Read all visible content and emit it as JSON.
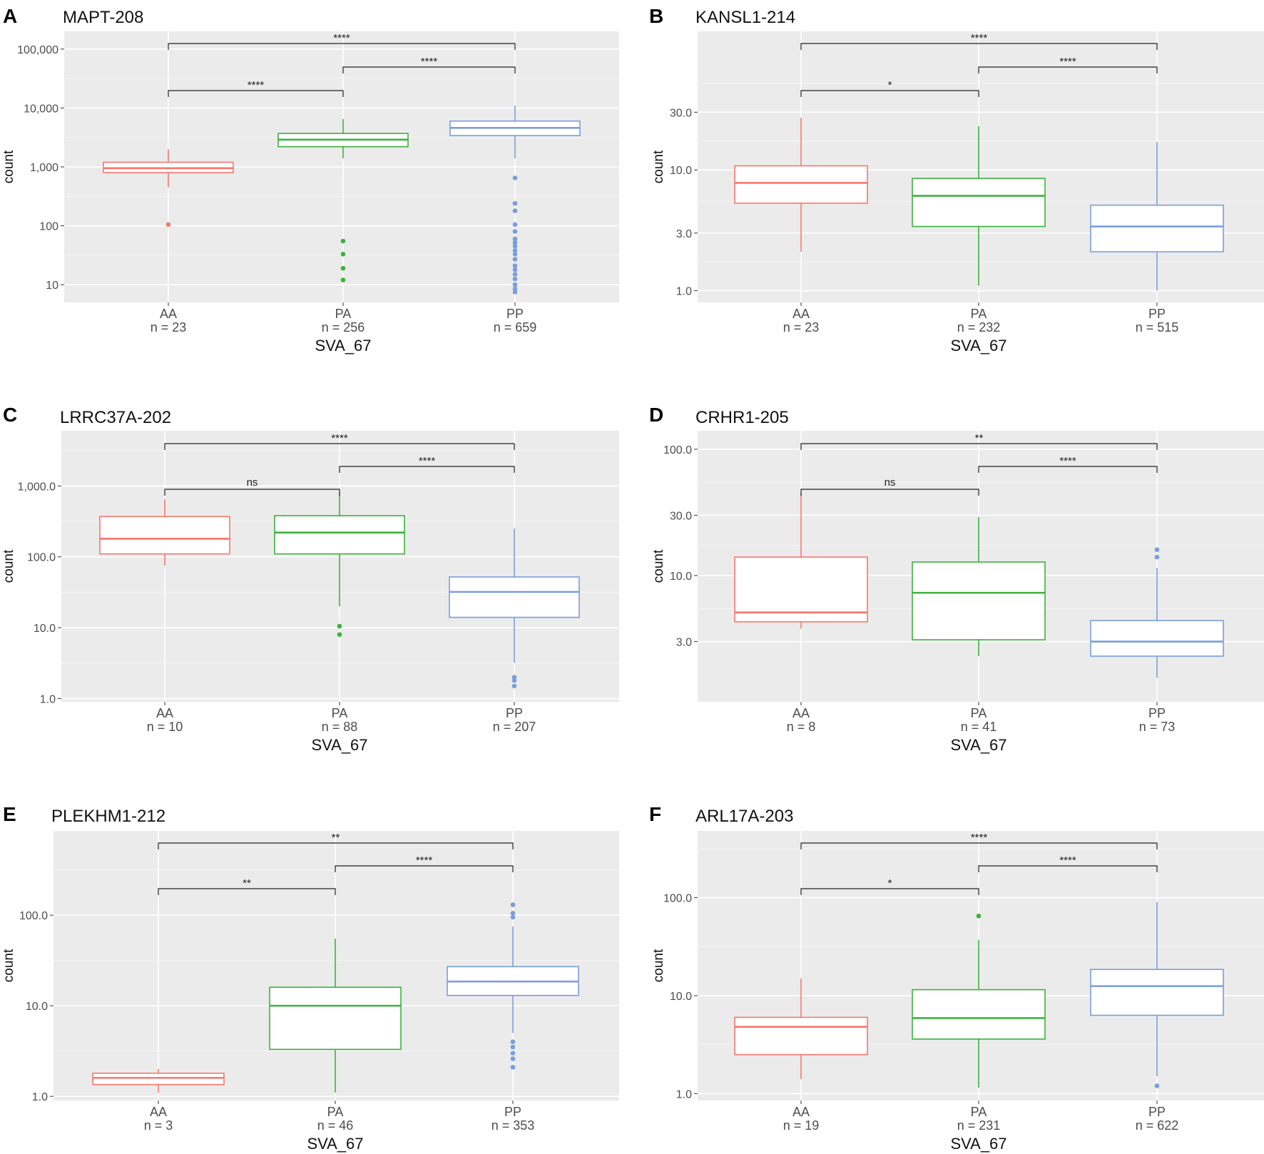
{
  "figure": {
    "x_axis_label": "SVA_67",
    "y_axis_label": "count",
    "colors": {
      "AA": "#F8766D",
      "PA": "#3BB33B",
      "PP": "#7A9EDB",
      "panel_bg": "#EBEBEB",
      "grid": "#FFFFFF"
    }
  },
  "chart_data": [
    {
      "type": "boxplot",
      "panel": "A",
      "title": "MAPT-208",
      "xlabel": "SVA_67",
      "ylabel": "count",
      "yscale": "log10",
      "ylim": [
        5,
        200000
      ],
      "yticks": [
        10,
        100,
        1000,
        10000,
        100000
      ],
      "ytick_labels": [
        "10",
        "100",
        "1,000",
        "10,000",
        "100,000"
      ],
      "categories": [
        "AA",
        "PA",
        "PP"
      ],
      "n_labels": [
        "n = 23",
        "n = 256",
        "n = 659"
      ],
      "boxes": [
        {
          "whisker_low": 450,
          "q1": 800,
          "median": 950,
          "q3": 1200,
          "whisker_high": 2000,
          "outliers": [
            105
          ]
        },
        {
          "whisker_low": 1400,
          "q1": 2200,
          "median": 2900,
          "q3": 3700,
          "whisker_high": 6500,
          "outliers": [
            55,
            33,
            19,
            12
          ]
        },
        {
          "whisker_low": 1400,
          "q1": 3400,
          "median": 4600,
          "q3": 6000,
          "whisker_high": 11000,
          "outliers": [
            650,
            240,
            180,
            105,
            80,
            60,
            52,
            45,
            38,
            33,
            27,
            21,
            18,
            15,
            12.5,
            10,
            8.5,
            7.5
          ]
        }
      ],
      "comparisons": [
        {
          "from": "AA",
          "to": "PA",
          "label": "****"
        },
        {
          "from": "PA",
          "to": "PP",
          "label": "****"
        },
        {
          "from": "AA",
          "to": "PP",
          "label": "****"
        }
      ]
    },
    {
      "type": "boxplot",
      "panel": "B",
      "title": "KANSL1-214",
      "xlabel": "SVA_67",
      "ylabel": "count",
      "yscale": "log10",
      "ylim": [
        0.8,
        140
      ],
      "yticks": [
        1,
        3,
        10,
        30
      ],
      "ytick_labels": [
        "1.0",
        "3.0",
        "10.0",
        "30.0"
      ],
      "categories": [
        "AA",
        "PA",
        "PP"
      ],
      "n_labels": [
        "n = 23",
        "n = 232",
        "n = 515"
      ],
      "boxes": [
        {
          "whisker_low": 2.1,
          "q1": 5.3,
          "median": 7.8,
          "q3": 10.8,
          "whisker_high": 27,
          "outliers": []
        },
        {
          "whisker_low": 1.1,
          "q1": 3.4,
          "median": 6.1,
          "q3": 8.5,
          "whisker_high": 23,
          "outliers": []
        },
        {
          "whisker_low": 1.0,
          "q1": 2.1,
          "median": 3.4,
          "q3": 5.1,
          "whisker_high": 17,
          "outliers": []
        }
      ],
      "comparisons": [
        {
          "from": "AA",
          "to": "PA",
          "label": "*"
        },
        {
          "from": "PA",
          "to": "PP",
          "label": "****"
        },
        {
          "from": "AA",
          "to": "PP",
          "label": "****"
        }
      ]
    },
    {
      "type": "boxplot",
      "panel": "C",
      "title": "LRRC37A-202",
      "xlabel": "SVA_67",
      "ylabel": "count",
      "yscale": "log10",
      "ylim": [
        0.9,
        6000
      ],
      "yticks": [
        1,
        10,
        100,
        1000
      ],
      "ytick_labels": [
        "1.0",
        "10.0",
        "100.0",
        "1,000.0"
      ],
      "categories": [
        "AA",
        "PA",
        "PP"
      ],
      "n_labels": [
        "n = 10",
        "n = 88",
        "n = 207"
      ],
      "boxes": [
        {
          "whisker_low": 75,
          "q1": 110,
          "median": 180,
          "q3": 370,
          "whisker_high": 650,
          "outliers": []
        },
        {
          "whisker_low": 20,
          "q1": 110,
          "median": 220,
          "q3": 380,
          "whisker_high": 800,
          "outliers": [
            10.5,
            8
          ]
        },
        {
          "whisker_low": 3.2,
          "q1": 14,
          "median": 32,
          "q3": 52,
          "whisker_high": 250,
          "outliers": [
            2.0,
            1.8,
            1.5
          ]
        }
      ],
      "comparisons": [
        {
          "from": "AA",
          "to": "PA",
          "label": "ns"
        },
        {
          "from": "PA",
          "to": "PP",
          "label": "****"
        },
        {
          "from": "AA",
          "to": "PP",
          "label": "****"
        }
      ]
    },
    {
      "type": "boxplot",
      "panel": "D",
      "title": "CRHR1-205",
      "xlabel": "SVA_67",
      "ylabel": "count",
      "yscale": "log10",
      "ylim": [
        1.0,
        140
      ],
      "yticks": [
        3,
        10,
        30,
        100
      ],
      "ytick_labels": [
        "3.0",
        "10.0",
        "30.0",
        "100.0"
      ],
      "categories": [
        "AA",
        "PA",
        "PP"
      ],
      "n_labels": [
        "n = 8",
        "n = 41",
        "n = 73"
      ],
      "boxes": [
        {
          "whisker_low": 3.8,
          "q1": 4.3,
          "median": 5.1,
          "q3": 14,
          "whisker_high": 45,
          "outliers": []
        },
        {
          "whisker_low": 2.3,
          "q1": 3.1,
          "median": 7.3,
          "q3": 12.8,
          "whisker_high": 29,
          "outliers": []
        },
        {
          "whisker_low": 1.55,
          "q1": 2.3,
          "median": 3.0,
          "q3": 4.4,
          "whisker_high": 11.5,
          "outliers": [
            16,
            14
          ]
        }
      ],
      "comparisons": [
        {
          "from": "AA",
          "to": "PA",
          "label": "ns"
        },
        {
          "from": "PA",
          "to": "PP",
          "label": "****"
        },
        {
          "from": "AA",
          "to": "PP",
          "label": "**"
        }
      ]
    },
    {
      "type": "boxplot",
      "panel": "E",
      "title": "PLEKHM1-212",
      "xlabel": "SVA_67",
      "ylabel": "count",
      "yscale": "log10",
      "ylim": [
        0.9,
        850
      ],
      "yticks": [
        1,
        10,
        100
      ],
      "ytick_labels": [
        "1.0",
        "10.0",
        "100.0"
      ],
      "categories": [
        "AA",
        "PA",
        "PP"
      ],
      "n_labels": [
        "n = 3",
        "n = 46",
        "n = 353"
      ],
      "boxes": [
        {
          "whisker_low": 1.1,
          "q1": 1.35,
          "median": 1.6,
          "q3": 1.8,
          "whisker_high": 2.0,
          "outliers": []
        },
        {
          "whisker_low": 1.1,
          "q1": 3.3,
          "median": 10,
          "q3": 16,
          "whisker_high": 55,
          "outliers": []
        },
        {
          "whisker_low": 5.0,
          "q1": 13,
          "median": 18.5,
          "q3": 27,
          "whisker_high": 75,
          "outliers": [
            130,
            105,
            95,
            4.0,
            3.5,
            3.0,
            2.6,
            2.1
          ]
        }
      ],
      "comparisons": [
        {
          "from": "AA",
          "to": "PA",
          "label": "**"
        },
        {
          "from": "PA",
          "to": "PP",
          "label": "****"
        },
        {
          "from": "AA",
          "to": "PP",
          "label": "**"
        }
      ]
    },
    {
      "type": "boxplot",
      "panel": "F",
      "title": "ARL17A-203",
      "xlabel": "SVA_67",
      "ylabel": "count",
      "yscale": "log10",
      "ylim": [
        0.85,
        480
      ],
      "yticks": [
        1,
        10,
        100
      ],
      "ytick_labels": [
        "1.0",
        "10.0",
        "100.0"
      ],
      "categories": [
        "AA",
        "PA",
        "PP"
      ],
      "n_labels": [
        "n = 19",
        "n = 231",
        "n = 622"
      ],
      "boxes": [
        {
          "whisker_low": 1.4,
          "q1": 2.5,
          "median": 4.8,
          "q3": 6.0,
          "whisker_high": 15,
          "outliers": []
        },
        {
          "whisker_low": 1.15,
          "q1": 3.6,
          "median": 5.9,
          "q3": 11.5,
          "whisker_high": 37,
          "outliers": [
            65
          ]
        },
        {
          "whisker_low": 1.5,
          "q1": 6.3,
          "median": 12.5,
          "q3": 18.5,
          "whisker_high": 90,
          "outliers": [
            1.2
          ]
        }
      ],
      "comparisons": [
        {
          "from": "AA",
          "to": "PA",
          "label": "*"
        },
        {
          "from": "PA",
          "to": "PP",
          "label": "****"
        },
        {
          "from": "AA",
          "to": "PP",
          "label": "****"
        }
      ]
    }
  ]
}
